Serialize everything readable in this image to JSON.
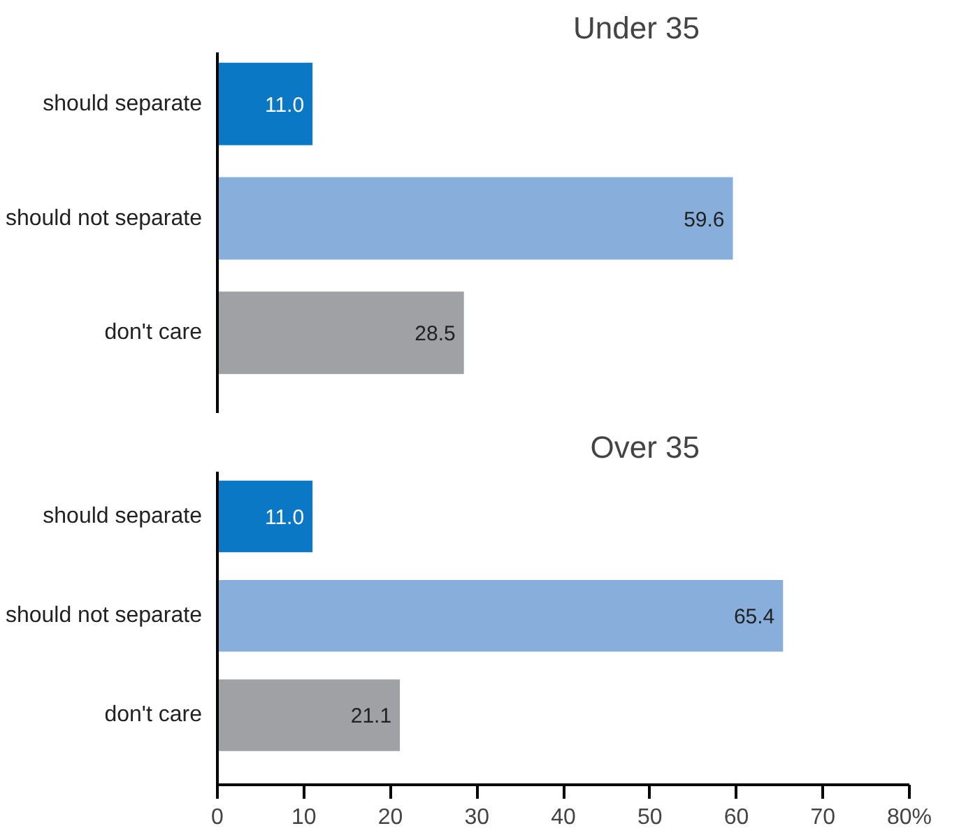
{
  "chart_data": [
    {
      "type": "bar",
      "orientation": "horizontal",
      "title": "Under 35",
      "categories": [
        "should separate",
        "should not separate",
        "don't care"
      ],
      "values": [
        11.0,
        59.6,
        28.5
      ],
      "value_labels": [
        "11.0",
        "59.6",
        "28.5"
      ],
      "colors": [
        "#0a78c4",
        "#88afdc",
        "#a0a1a5"
      ],
      "xlim": [
        0,
        80
      ],
      "tick_labels": "y",
      "grid": false
    },
    {
      "type": "bar",
      "orientation": "horizontal",
      "title": "Over 35",
      "categories": [
        "should separate",
        "should not separate",
        "don't care"
      ],
      "values": [
        11.0,
        65.4,
        21.1
      ],
      "value_labels": [
        "11.0",
        "65.4",
        "21.1"
      ],
      "colors": [
        "#0a78c4",
        "#88afdc",
        "#a0a1a5"
      ],
      "xlim": [
        0,
        80
      ],
      "xticks": [
        0,
        10,
        20,
        30,
        40,
        50,
        60,
        70,
        {
          "value": 80,
          "label": "80%"
        }
      ],
      "grid": false
    }
  ]
}
